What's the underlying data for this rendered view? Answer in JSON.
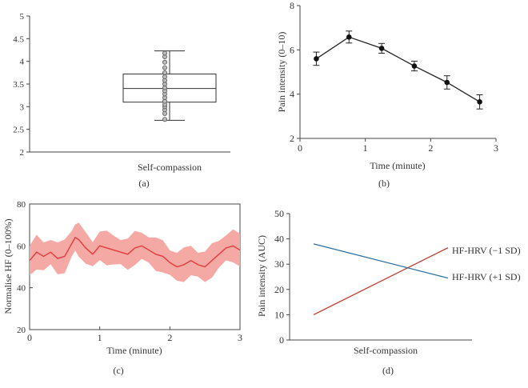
{
  "chart_data": [
    {
      "panel": "(a)",
      "type": "box",
      "title": "",
      "xlabel": "Self-compassion",
      "ylabel": "",
      "ylim": [
        2,
        5
      ],
      "yticks": [
        "2",
        "2.5",
        "3",
        "3.5",
        "4",
        "4.5",
        "5"
      ],
      "box": {
        "whisker_low": 2.7,
        "q1": 3.1,
        "median": 3.4,
        "q3": 3.72,
        "whisker_high": 4.23
      },
      "points": [
        2.72,
        2.85,
        2.93,
        3.0,
        3.05,
        3.12,
        3.2,
        3.28,
        3.35,
        3.42,
        3.5,
        3.58,
        3.66,
        3.75,
        3.86,
        3.98,
        4.1,
        4.18
      ]
    },
    {
      "panel": "(b)",
      "type": "line",
      "xlabel": "Time (minute)",
      "ylabel": "Pain intensity (0–10)",
      "xlim": [
        0,
        3
      ],
      "ylim": [
        2,
        8
      ],
      "xticks": [
        "0",
        "1",
        "2",
        "3"
      ],
      "yticks": [
        "2",
        "4",
        "6",
        "8"
      ],
      "x": [
        0.25,
        0.75,
        1.25,
        1.75,
        2.25,
        2.75
      ],
      "values": [
        5.6,
        6.58,
        6.07,
        5.27,
        4.53,
        3.65
      ],
      "errors": [
        0.3,
        0.27,
        0.22,
        0.22,
        0.3,
        0.32
      ]
    },
    {
      "panel": "(c)",
      "type": "area",
      "xlabel": "Time (minute)",
      "ylabel": "Normalise HF (0–100%)",
      "xlim": [
        0,
        3
      ],
      "ylim": [
        20,
        80
      ],
      "xticks": [
        "0",
        "1",
        "2",
        "3"
      ],
      "yticks": [
        "20",
        "40",
        "60",
        "80"
      ],
      "band_halfwidth": 7,
      "x": [
        0,
        0.1,
        0.2,
        0.3,
        0.4,
        0.5,
        0.6,
        0.65,
        0.7,
        0.8,
        0.9,
        1.0,
        1.1,
        1.2,
        1.3,
        1.4,
        1.5,
        1.6,
        1.7,
        1.8,
        1.9,
        2.0,
        2.1,
        2.2,
        2.3,
        2.4,
        2.5,
        2.6,
        2.7,
        2.8,
        2.9,
        3.0
      ],
      "values": [
        53,
        57,
        55,
        57,
        54,
        55,
        61,
        64,
        63,
        59,
        56,
        60,
        59,
        58,
        57,
        56,
        59,
        60,
        58,
        56,
        55,
        52,
        50,
        51,
        53,
        51,
        50,
        53,
        56,
        59,
        60,
        58
      ],
      "colors": {
        "line": "#e03c3c",
        "band": "#f5a9a4"
      }
    },
    {
      "panel": "(d)",
      "type": "line",
      "xlabel": "Self-compassion",
      "ylabel": "Pain intensity (AUC)",
      "ylim": [
        0,
        50
      ],
      "yticks": [
        "0",
        "10",
        "20",
        "30",
        "40",
        "50"
      ],
      "x": [
        0,
        1
      ],
      "series": [
        {
          "name": "HF-HRV (−1 SD)",
          "values": [
            10,
            36.5
          ],
          "color": "#c0392b"
        },
        {
          "name": "HF-HRV (+1 SD)",
          "values": [
            38,
            24.5
          ],
          "color": "#2f6f9f"
        }
      ]
    }
  ],
  "panel_labels": [
    "(a)",
    "(b)",
    "(c)",
    "(d)"
  ]
}
